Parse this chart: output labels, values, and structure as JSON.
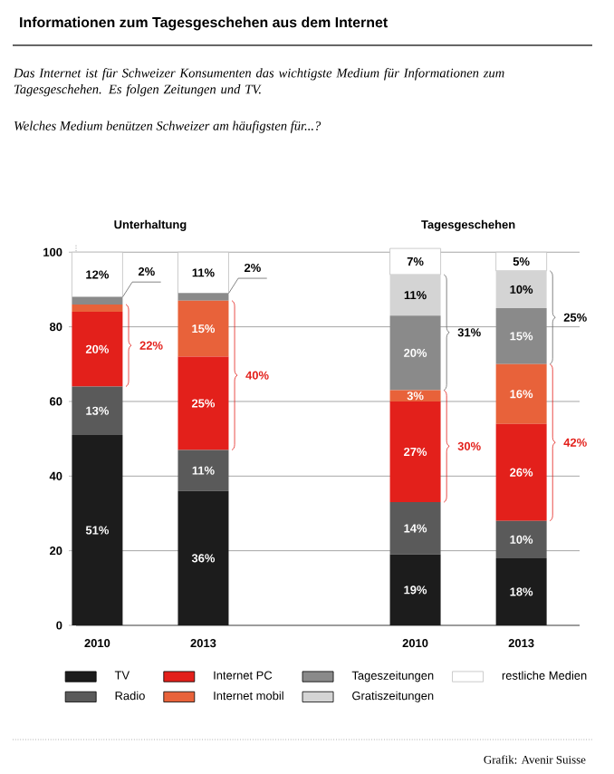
{
  "chart_data": {
    "type": "bar",
    "stacked": true,
    "title": "Informationen zum Tagesgeschehen aus dem Internet",
    "subtitle": "*Das Internet ist für Schweizer Konsumenten das wichtigste Medium für Informationen zum Tagesgeschehen. Es folgen Zeitungen und TV.*",
    "categories": [
      "2010",
      "2013",
      null,
      "2010",
      "2013"
    ],
    "series": [
      {
        "name": "TV",
        "color": "#1c1c1c",
        "values": [
          51,
          36,
          null,
          19,
          18
        ],
        "value_labels": [
          "51%",
          "36%",
          null,
          "19%",
          "18%"
        ]
      },
      {
        "name": "Radio",
        "color": "#5a5a5a",
        "values": [
          13,
          11,
          null,
          14,
          10
        ],
        "value_labels": [
          "13%",
          "11%",
          null,
          "14%",
          "10%"
        ]
      },
      {
        "name": "Internet PC",
        "color": "#e3201b",
        "values": [
          20,
          25,
          null,
          27,
          26
        ],
        "value_labels": [
          "20%",
          "25%",
          null,
          "27%",
          "26%"
        ]
      },
      {
        "name": "Internet mobil",
        "color": "#e8623a",
        "values": [
          2,
          15,
          null,
          3,
          16
        ],
        "value_labels": [
          null,
          "15%",
          null,
          "3%",
          "16%"
        ]
      },
      {
        "name": "Tageszeitungen",
        "color": "#8a8a8a",
        "values": [
          2,
          2,
          null,
          20,
          15
        ],
        "value_labels": [
          "2%",
          "2%",
          null,
          "20%",
          "15%"
        ]
      },
      {
        "name": "Gratiszeitungen",
        "color": "#d4d4d4",
        "values": [
          0,
          0,
          null,
          11,
          10
        ],
        "value_labels": [
          null,
          null,
          null,
          "11%",
          "10%"
        ]
      },
      {
        "name": "restliche Medien",
        "color": "#ffffff",
        "values": [
          12,
          11,
          null,
          7,
          5
        ],
        "value_labels": [
          "12%",
          "11%",
          null,
          "7%",
          "5%"
        ]
      }
    ],
    "ylim": [
      0,
      102
    ],
    "yticks": [
      0,
      20,
      40,
      60,
      80,
      100
    ],
    "grid": "y",
    "legend": "bottom",
    "annotations": [
      "*Welches Medium benützen Schweizer am häufigsten für...?*",
      "Unterhaltung",
      "Tagesgeschehen",
      "Grafik: Avenir Suisse",
      "22%",
      "40%",
      "30%",
      "31%",
      "42%",
      "25%"
    ]
  }
}
